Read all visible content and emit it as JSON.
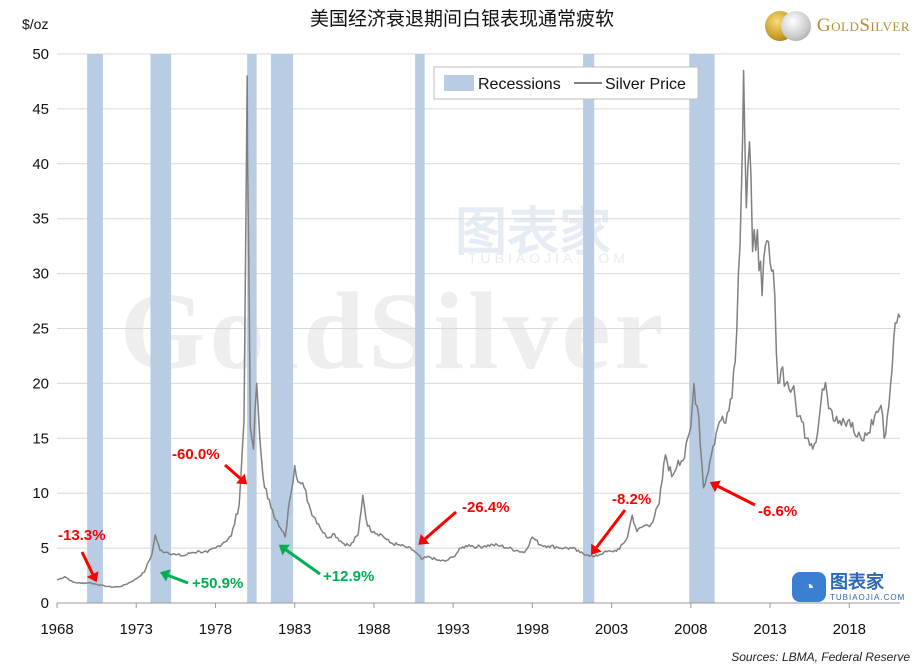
{
  "title": "美国经济衰退期间白银表现通常疲软",
  "brand": "GoldSilver",
  "watermark": {
    "brand": "GoldSilver",
    "cn": "图表家",
    "en": "TUBIAOJIA.COM"
  },
  "source_text": "Sources:  LBMA,  Federal Reserve",
  "colors": {
    "recession": "#b8cce4",
    "price": "#808080",
    "down": "#ff0000",
    "up": "#00b050",
    "grid": "#d9d9d9"
  },
  "chart_data": {
    "type": "line",
    "title": "美国经济衰退期间白银表现通常疲软",
    "ylabel": "$/oz",
    "xlabel": "",
    "ylim": [
      0,
      50
    ],
    "xlim": [
      1968.0,
      2021.2
    ],
    "y_ticks": [
      0,
      5,
      10,
      15,
      20,
      25,
      30,
      35,
      40,
      45,
      50
    ],
    "x_ticks": [
      1968,
      1973,
      1978,
      1983,
      1988,
      1993,
      1998,
      2003,
      2008,
      2013,
      2018
    ],
    "grid": true,
    "legend_position": "top-right",
    "legend": [
      "Recessions",
      "Silver Price"
    ],
    "recessions": [
      [
        1969.9,
        1970.9
      ],
      [
        1973.9,
        1975.2
      ],
      [
        1980.0,
        1980.6
      ],
      [
        1981.5,
        1982.9
      ],
      [
        1990.6,
        1991.2
      ],
      [
        2001.2,
        2001.9
      ],
      [
        2007.9,
        2009.5
      ]
    ],
    "series": [
      {
        "name": "Silver Price",
        "x": [
          1968.0,
          1968.5,
          1969.0,
          1969.5,
          1970.0,
          1970.5,
          1971.0,
          1971.5,
          1972.0,
          1972.5,
          1973.0,
          1973.5,
          1974.0,
          1974.2,
          1974.5,
          1975.0,
          1975.5,
          1976.0,
          1976.5,
          1977.0,
          1977.5,
          1978.0,
          1978.5,
          1979.0,
          1979.5,
          1979.8,
          1980.0,
          1980.05,
          1980.2,
          1980.4,
          1980.6,
          1980.8,
          1981.0,
          1981.3,
          1981.6,
          1982.0,
          1982.4,
          1982.7,
          1983.0,
          1983.3,
          1983.6,
          1984.0,
          1984.5,
          1985.0,
          1985.5,
          1986.0,
          1986.5,
          1987.0,
          1987.3,
          1987.6,
          1988.0,
          1988.5,
          1989.0,
          1989.5,
          1990.0,
          1990.5,
          1991.0,
          1991.5,
          1992.0,
          1992.5,
          1993.0,
          1993.5,
          1994.0,
          1994.5,
          1995.0,
          1995.5,
          1996.0,
          1996.5,
          1997.0,
          1997.5,
          1998.0,
          1998.5,
          1999.0,
          1999.5,
          2000.0,
          2000.5,
          2001.0,
          2001.5,
          2001.9,
          2002.5,
          2003.0,
          2003.5,
          2004.0,
          2004.3,
          2004.6,
          2005.0,
          2005.5,
          2006.0,
          2006.4,
          2006.8,
          2007.2,
          2007.6,
          2008.0,
          2008.2,
          2008.5,
          2008.8,
          2009.0,
          2009.3,
          2009.6,
          2010.0,
          2010.4,
          2010.8,
          2011.0,
          2011.2,
          2011.33,
          2011.5,
          2011.7,
          2011.9,
          2012.2,
          2012.5,
          2012.8,
          2013.0,
          2013.3,
          2013.5,
          2013.8,
          2014.0,
          2014.4,
          2014.8,
          2015.0,
          2015.4,
          2015.8,
          2016.0,
          2016.3,
          2016.6,
          2016.9,
          2017.2,
          2017.6,
          2018.0,
          2018.4,
          2018.8,
          2019.2,
          2019.6,
          2020.0,
          2020.2,
          2020.5,
          2020.8,
          2021.0,
          2021.2
        ],
        "values": [
          2.1,
          2.4,
          1.9,
          1.8,
          1.85,
          1.7,
          1.55,
          1.45,
          1.5,
          1.8,
          2.2,
          2.8,
          4.5,
          6.2,
          4.8,
          4.6,
          4.4,
          4.3,
          4.6,
          4.7,
          4.6,
          5.0,
          5.5,
          6.1,
          9.0,
          16.5,
          48.0,
          38.0,
          16.0,
          14.0,
          20.0,
          15.0,
          11.5,
          9.5,
          8.5,
          7.0,
          6.0,
          9.5,
          12.5,
          11.0,
          10.5,
          8.5,
          7.2,
          6.0,
          6.3,
          5.5,
          5.2,
          6.2,
          9.8,
          7.0,
          6.5,
          6.2,
          5.5,
          5.3,
          5.1,
          4.8,
          4.0,
          4.2,
          3.9,
          3.8,
          4.2,
          5.0,
          5.3,
          5.1,
          5.2,
          5.3,
          5.2,
          5.0,
          4.8,
          4.6,
          6.0,
          5.3,
          5.2,
          5.1,
          5.0,
          5.0,
          4.6,
          4.4,
          4.2,
          4.6,
          4.7,
          4.9,
          6.0,
          8.0,
          6.5,
          7.0,
          7.2,
          9.0,
          13.5,
          11.5,
          13.0,
          13.2,
          16.0,
          20.0,
          17.0,
          10.5,
          11.5,
          13.5,
          15.5,
          17.0,
          17.5,
          22.0,
          30.0,
          38.0,
          48.5,
          36.0,
          42.0,
          32.0,
          34.0,
          28.0,
          33.0,
          31.0,
          28.0,
          20.0,
          21.5,
          20.0,
          19.5,
          17.0,
          16.5,
          15.0,
          14.5,
          15.5,
          19.5,
          19.0,
          17.5,
          17.0,
          16.8,
          16.7,
          15.2,
          14.8,
          15.5,
          17.0,
          18.0,
          15.0,
          18.0,
          24.0,
          25.5,
          26.0
        ]
      }
    ],
    "annotations": [
      {
        "text": "-13.3%",
        "x": 1970.5,
        "y": 1.9,
        "direction": "down"
      },
      {
        "text": "+50.9%",
        "x": 1974.5,
        "y": 2.8,
        "direction": "up"
      },
      {
        "text": "-60.0%",
        "x": 1980.0,
        "y": 10.8,
        "direction": "down"
      },
      {
        "text": "+12.9%",
        "x": 1982.0,
        "y": 5.3,
        "direction": "up"
      },
      {
        "text": "-26.4%",
        "x": 1990.8,
        "y": 5.3,
        "direction": "down"
      },
      {
        "text": "-8.2%",
        "x": 2001.7,
        "y": 4.4,
        "direction": "down"
      },
      {
        "text": "-6.6%",
        "x": 2009.2,
        "y": 11.0,
        "direction": "down"
      }
    ]
  }
}
